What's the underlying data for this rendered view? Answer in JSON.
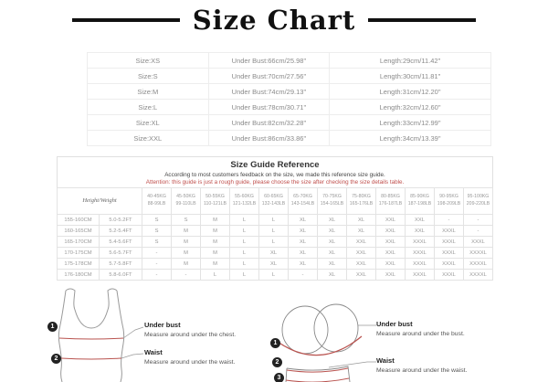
{
  "colors": {
    "accent_red_text": "#c0504d",
    "measure_line_red": "#b9534f",
    "table_border": "#ededed",
    "text_gray": "#8a8a8a",
    "title_black": "#111111"
  },
  "title": "Size Chart",
  "size_table": {
    "rows": [
      {
        "size": "Size:XS",
        "under_bust": "Under Bust:66cm/25.98\"",
        "length": "Length:29cm/11.42\""
      },
      {
        "size": "Size:S",
        "under_bust": "Under Bust:70cm/27.56\"",
        "length": "Length:30cm/11.81\""
      },
      {
        "size": "Size:M",
        "under_bust": "Under Bust:74cm/29.13\"",
        "length": "Length:31cm/12.20\""
      },
      {
        "size": "Size:L",
        "under_bust": "Under Bust:78cm/30.71\"",
        "length": "Length:32cm/12.60\""
      },
      {
        "size": "Size:XL",
        "under_bust": "Under Bust:82cm/32.28\"",
        "length": "Length:33cm/12.99\""
      },
      {
        "size": "Size:XXL",
        "under_bust": "Under Bust:86cm/33.86\"",
        "length": "Length:34cm/13.39\""
      }
    ]
  },
  "guide": {
    "heading": "Size Guide Reference",
    "note": "According to most customers feedback on the size,  we made this reference size guide.",
    "warning": "Attention: this guide is just a rough guide, please choose the size after checking the size details table.",
    "corner_label": "Height/Weight",
    "weight_cols": [
      {
        "kg": "40-45KG",
        "lb": "88-99LB"
      },
      {
        "kg": "45-50KG",
        "lb": "99-110LB"
      },
      {
        "kg": "50-55KG",
        "lb": "110-121LB"
      },
      {
        "kg": "55-60KG",
        "lb": "121-132LB"
      },
      {
        "kg": "60-65KG",
        "lb": "132-143LB"
      },
      {
        "kg": "65-70KG",
        "lb": "143-154LB"
      },
      {
        "kg": "70-75KG",
        "lb": "154-165LB"
      },
      {
        "kg": "75-80KG",
        "lb": "165-176LB"
      },
      {
        "kg": "80-85KG",
        "lb": "176-187LB"
      },
      {
        "kg": "85-90KG",
        "lb": "187-198LB"
      },
      {
        "kg": "90-95KG",
        "lb": "198-209LB"
      },
      {
        "kg": "95-100KG",
        "lb": "209-220LB"
      }
    ],
    "rows": [
      {
        "cm": "155-160CM",
        "ft": "5.0-5.2FT",
        "sizes": [
          "S",
          "S",
          "M",
          "L",
          "L",
          "XL",
          "XL",
          "XL",
          "XXL",
          "XXL",
          "-",
          "-"
        ]
      },
      {
        "cm": "160-165CM",
        "ft": "5.2-5.4FT",
        "sizes": [
          "S",
          "M",
          "M",
          "L",
          "L",
          "XL",
          "XL",
          "XL",
          "XXL",
          "XXL",
          "XXXL",
          "-"
        ]
      },
      {
        "cm": "165-170CM",
        "ft": "5.4-5.6FT",
        "sizes": [
          "S",
          "M",
          "M",
          "L",
          "L",
          "XL",
          "XL",
          "XXL",
          "XXL",
          "XXXL",
          "XXXL",
          "XXXL"
        ]
      },
      {
        "cm": "170-175CM",
        "ft": "5.6-5.7FT",
        "sizes": [
          "-",
          "M",
          "M",
          "L",
          "XL",
          "XL",
          "XL",
          "XXL",
          "XXL",
          "XXXL",
          "XXXL",
          "XXXXL"
        ]
      },
      {
        "cm": "175-178CM",
        "ft": "5.7-5.8FT",
        "sizes": [
          "-",
          "M",
          "M",
          "L",
          "XL",
          "XL",
          "XL",
          "XXL",
          "XXL",
          "XXXL",
          "XXXL",
          "XXXXL"
        ]
      },
      {
        "cm": "176-180CM",
        "ft": "5.8-6.0FT",
        "sizes": [
          "-",
          "-",
          "L",
          "L",
          "L",
          "-",
          "XL",
          "XXL",
          "XXL",
          "XXXL",
          "XXXL",
          "XXXXL"
        ]
      }
    ]
  },
  "diagram_left": {
    "callouts": [
      {
        "num": "1",
        "label": "Under bust",
        "desc": "Measure around under the chest."
      },
      {
        "num": "2",
        "label": "Waist",
        "desc": "Measure around under the waist."
      }
    ]
  },
  "diagram_right": {
    "callouts": [
      {
        "num": "1",
        "label": "Under bust",
        "desc": "Measure around under the bust."
      },
      {
        "num": "2",
        "label": "Waist",
        "desc": "Measure around under the waist."
      },
      {
        "num": "3",
        "label": "",
        "desc": ""
      }
    ]
  }
}
